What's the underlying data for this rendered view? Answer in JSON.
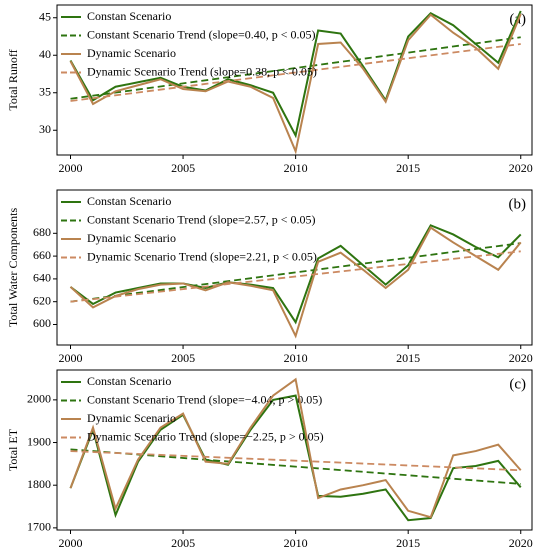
{
  "chart_data": [
    {
      "type": "line",
      "panel_label": "(a)",
      "ylabel": "Total Runoff",
      "x": [
        2000,
        2001,
        2002,
        2003,
        2004,
        2005,
        2006,
        2007,
        2008,
        2009,
        2010,
        2011,
        2012,
        2013,
        2014,
        2015,
        2016,
        2017,
        2018,
        2019,
        2020
      ],
      "xlim": [
        1999.4,
        2020.5
      ],
      "xticks": [
        2000,
        2005,
        2010,
        2015,
        2020
      ],
      "ylim": [
        26.7,
        46.7
      ],
      "yticks": [
        30,
        35,
        40,
        45
      ],
      "series": [
        {
          "name": "Constan Scenario",
          "color": "#2e7410",
          "linestyle": "solid",
          "values": [
            39.3,
            34.0,
            35.8,
            36.4,
            37.0,
            35.8,
            35.3,
            36.8,
            36.0,
            35.0,
            29.3,
            43.3,
            42.9,
            38.5,
            34.0,
            42.5,
            45.6,
            44.0,
            41.5,
            39.0,
            45.9
          ]
        },
        {
          "name": "Constant Scenario Trend (slope=0.40, p < 0.05)",
          "color": "#2e7410",
          "linestyle": "dashed",
          "x": [
            2000,
            2020
          ],
          "values": [
            34.2,
            42.4
          ]
        },
        {
          "name": "Dynamic Scenario",
          "color": "#b9834f",
          "linestyle": "solid",
          "values": [
            39.2,
            33.5,
            35.2,
            36.0,
            36.8,
            35.5,
            35.2,
            36.5,
            35.8,
            34.3,
            27.2,
            41.5,
            41.7,
            38.2,
            33.8,
            42.0,
            45.4,
            43.0,
            41.0,
            38.2,
            45.5
          ]
        },
        {
          "name": "Dynamic Scenario Trend (slope=0.38, p < 0.05)",
          "color": "#cc8a62",
          "linestyle": "dashed",
          "x": [
            2000,
            2020
          ],
          "values": [
            33.9,
            41.5
          ]
        }
      ]
    },
    {
      "type": "line",
      "panel_label": "(b)",
      "ylabel": "Total Water Components",
      "x": [
        2000,
        2001,
        2002,
        2003,
        2004,
        2005,
        2006,
        2007,
        2008,
        2009,
        2010,
        2011,
        2012,
        2013,
        2014,
        2015,
        2016,
        2017,
        2018,
        2019,
        2020
      ],
      "xlim": [
        1999.4,
        2020.5
      ],
      "xticks": [
        2000,
        2005,
        2010,
        2015,
        2020
      ],
      "ylim": [
        582,
        718
      ],
      "yticks": [
        600,
        620,
        640,
        660,
        680
      ],
      "series": [
        {
          "name": "Constan Scenario",
          "color": "#2e7410",
          "linestyle": "solid",
          "values": [
            633,
            618,
            628,
            632,
            636,
            636,
            632,
            637,
            635,
            632,
            602,
            658,
            669,
            652,
            635,
            652,
            687,
            679,
            668,
            659,
            679
          ]
        },
        {
          "name": "Constant Scenario Trend (slope=2.57, p < 0.05)",
          "color": "#2e7410",
          "linestyle": "dashed",
          "x": [
            2000,
            2020
          ],
          "values": [
            620,
            671.4
          ]
        },
        {
          "name": "Dynamic Scenario",
          "color": "#b9834f",
          "linestyle": "solid",
          "values": [
            633,
            615,
            625,
            631,
            635,
            636,
            630,
            637,
            634,
            630,
            590,
            655,
            663,
            648,
            632,
            648,
            685,
            672,
            660,
            648,
            672
          ]
        },
        {
          "name": "Dynamic Scenario Trend (slope=2.21, p < 0.05)",
          "color": "#cc8a62",
          "linestyle": "dashed",
          "x": [
            2000,
            2020
          ],
          "values": [
            620,
            664.2
          ]
        }
      ]
    },
    {
      "type": "line",
      "panel_label": "(c)",
      "ylabel": "Total ET",
      "x": [
        2000,
        2001,
        2002,
        2003,
        2004,
        2005,
        2006,
        2007,
        2008,
        2009,
        2010,
        2011,
        2012,
        2013,
        2014,
        2015,
        2016,
        2017,
        2018,
        2019,
        2020
      ],
      "xlim": [
        1999.4,
        2020.5
      ],
      "xticks": [
        2000,
        2005,
        2010,
        2015,
        2020
      ],
      "ylim": [
        1695,
        2070
      ],
      "yticks": [
        1700,
        1800,
        1900,
        2000
      ],
      "series": [
        {
          "name": "Constan Scenario",
          "color": "#2e7410",
          "linestyle": "solid",
          "values": [
            1793,
            1930,
            1730,
            1855,
            1930,
            1965,
            1860,
            1848,
            1930,
            2000,
            2010,
            1775,
            1773,
            1780,
            1790,
            1718,
            1723,
            1840,
            1845,
            1857,
            1795
          ]
        },
        {
          "name": "Constant Scenario Trend (slope=−4.04, p > 0.05)",
          "color": "#2e7410",
          "linestyle": "dashed",
          "x": [
            2000,
            2020
          ],
          "values": [
            1884,
            1803
          ]
        },
        {
          "name": "Dynamic Scenario",
          "color": "#b9834f",
          "linestyle": "solid",
          "values": [
            1793,
            1935,
            1745,
            1860,
            1935,
            1968,
            1855,
            1850,
            1935,
            2010,
            2048,
            1770,
            1790,
            1800,
            1812,
            1740,
            1725,
            1870,
            1880,
            1895,
            1835
          ]
        },
        {
          "name": "Dynamic Scenario Trend (slope=−2.25, p > 0.05)",
          "color": "#cc8a62",
          "linestyle": "dashed",
          "x": [
            2000,
            2020
          ],
          "values": [
            1880,
            1835
          ]
        }
      ]
    }
  ]
}
